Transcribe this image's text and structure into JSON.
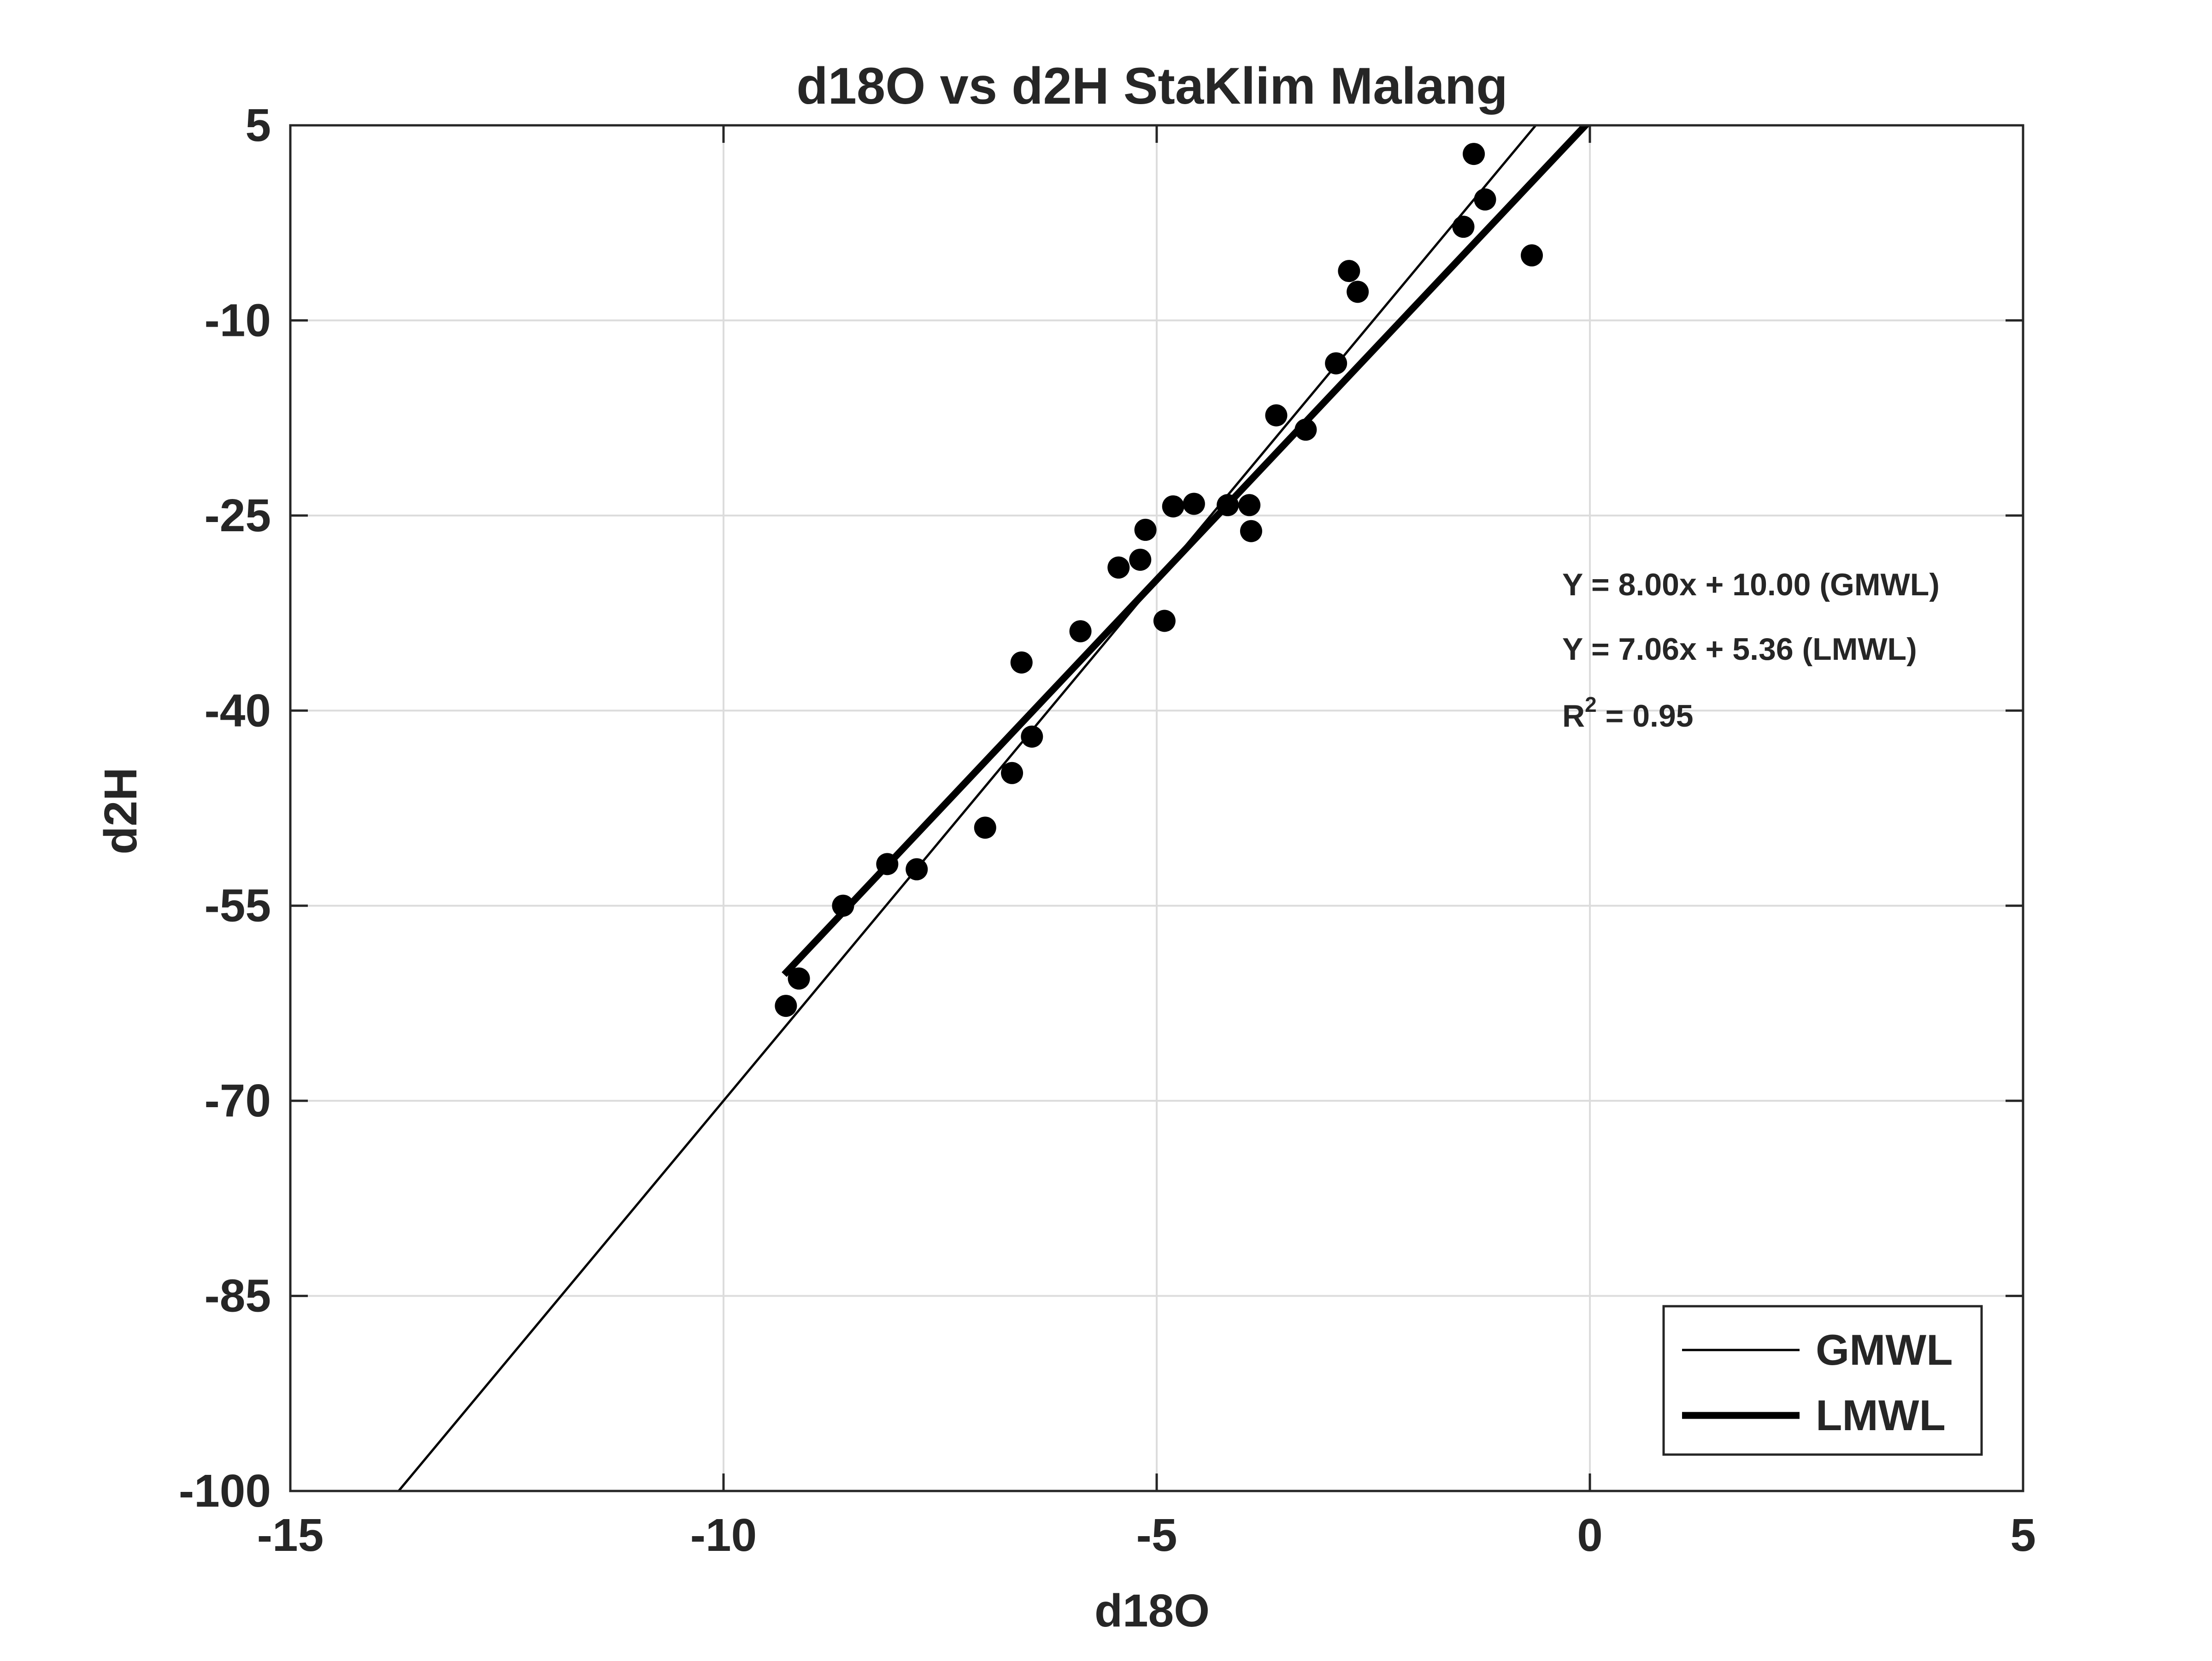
{
  "chart_data": {
    "type": "scatter",
    "title": "d18O vs d2H StaKlim Malang",
    "xlabel": "d18O",
    "ylabel": "d2H",
    "xlim": [
      -15,
      5
    ],
    "ylim": [
      -100,
      5
    ],
    "xticks": [
      -15,
      -10,
      -5,
      0,
      5
    ],
    "yticks": [
      -100,
      -85,
      -70,
      -55,
      -40,
      -25,
      -10,
      5
    ],
    "grid": true,
    "legend_position": "bottom-right",
    "series": [
      {
        "type": "scatter",
        "marker": "filled-circle",
        "color": "#000000",
        "points": [
          [
            -9.28,
            -62.7
          ],
          [
            -9.13,
            -60.6
          ],
          [
            -8.62,
            -55.0
          ],
          [
            -8.11,
            -51.8
          ],
          [
            -7.77,
            -52.2
          ],
          [
            -6.98,
            -49.0
          ],
          [
            -6.67,
            -44.8
          ],
          [
            -6.56,
            -36.3
          ],
          [
            -6.44,
            -42.0
          ],
          [
            -5.88,
            -33.9
          ],
          [
            -5.44,
            -29.0
          ],
          [
            -5.19,
            -28.4
          ],
          [
            -5.13,
            -26.1
          ],
          [
            -4.91,
            -33.1
          ],
          [
            -4.81,
            -24.3
          ],
          [
            -4.57,
            -24.1
          ],
          [
            -4.18,
            -24.2
          ],
          [
            -3.93,
            -24.2
          ],
          [
            -3.91,
            -26.2
          ],
          [
            -3.62,
            -17.3
          ],
          [
            -3.28,
            -18.4
          ],
          [
            -2.93,
            -13.3
          ],
          [
            -2.78,
            -6.2
          ],
          [
            -2.68,
            -7.8
          ],
          [
            -1.46,
            -2.8
          ],
          [
            -1.34,
            2.8
          ],
          [
            -1.21,
            -0.7
          ],
          [
            -0.67,
            -5.0
          ]
        ]
      },
      {
        "name": "GMWL",
        "type": "line",
        "slope": 8.0,
        "intercept": 10.0,
        "x_range": [
          -13.75,
          -0.62
        ],
        "color": "#000000",
        "weight": "thin"
      },
      {
        "name": "LMWL",
        "type": "line",
        "slope": 7.06,
        "intercept": 5.36,
        "x_range": [
          -9.3,
          -0.04
        ],
        "color": "#000000",
        "weight": "thick"
      }
    ],
    "annotations": [
      "Y = 8.00x + 10.00 (GMWL)",
      "Y = 7.06x + 5.36 (LMWL)"
    ],
    "r_squared": {
      "label": "R",
      "superscript": "2",
      "value": " = 0.95"
    }
  }
}
